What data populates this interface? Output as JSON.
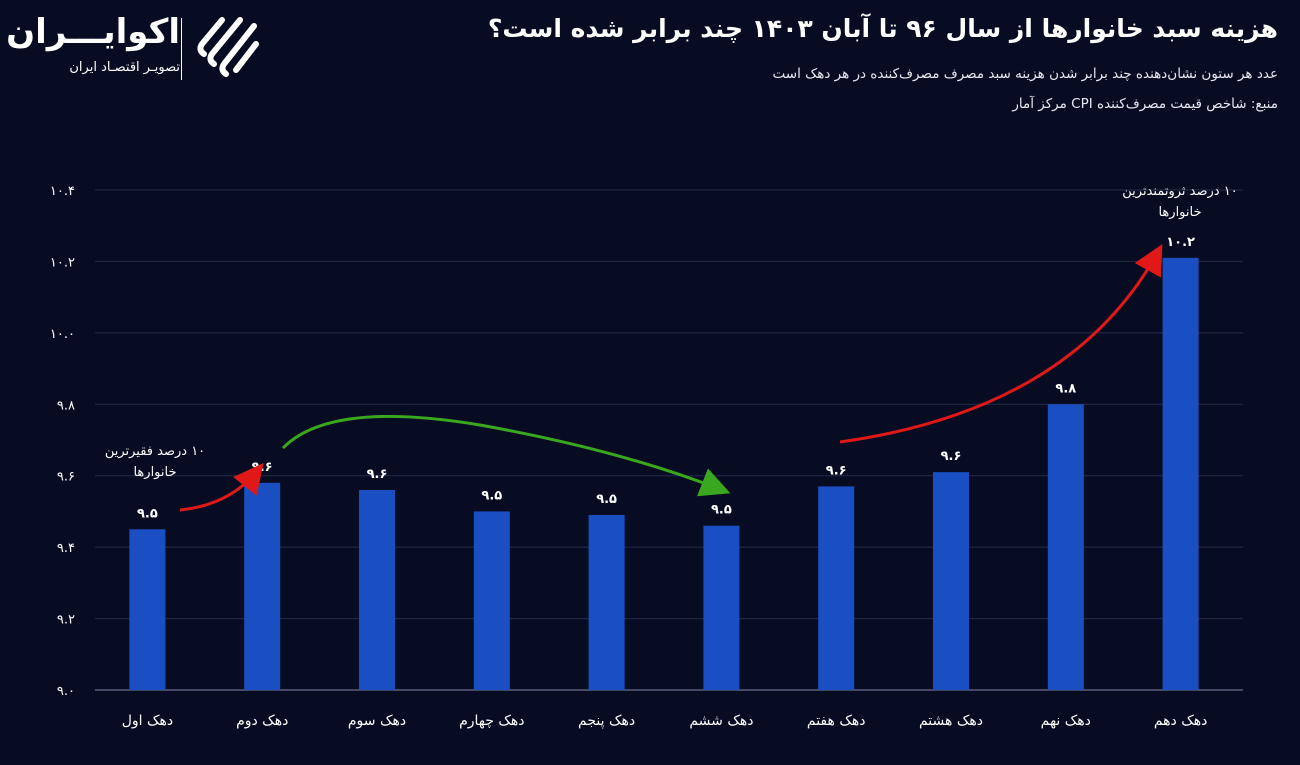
{
  "header": {
    "title": "هزینه سبد خانوارها از سال ۹۶ تا آبان ۱۴۰۳ چند برابر شده است؟",
    "subtitle": "عدد هر ستون نشان‌دهنده چند برابر شدن هزینه سبد مصرف مصرف‌کننده در هر دهک است",
    "source": "منبع: شاخص قیمت مصرف‌کننده CPI مرکز آمار"
  },
  "logo": {
    "name": "اکوایـــران",
    "tagline": "تصویـر اقتصـاد ایران"
  },
  "colors": {
    "background": "#070c22",
    "bar": "#1a4fc4",
    "grid": "#2a3050",
    "arrow_red": "#e01818",
    "arrow_green": "#3aa81e"
  },
  "chart_data": {
    "type": "bar",
    "categories": [
      "دهک اول",
      "دهک دوم",
      "دهک سوم",
      "دهک چهارم",
      "دهک پنجم",
      "دهک ششم",
      "دهک هفتم",
      "دهک هشتم",
      "دهک نهم",
      "دهک دهم"
    ],
    "values": [
      9.45,
      9.58,
      9.56,
      9.5,
      9.49,
      9.46,
      9.57,
      9.61,
      9.8,
      10.21
    ],
    "data_labels": [
      "۹.۵",
      "۹.۶",
      "۹.۶",
      "۹.۵",
      "۹.۵",
      "۹.۵",
      "۹.۶",
      "۹.۶",
      "۹.۸",
      "۱۰.۲"
    ],
    "ylim": [
      9.0,
      10.4
    ],
    "yticks": [
      9.0,
      9.2,
      9.4,
      9.6,
      9.8,
      10.0,
      10.2,
      10.4
    ],
    "ytick_labels": [
      "۹.۰",
      "۹.۲",
      "۹.۴",
      "۹.۶",
      "۹.۸",
      "۱۰.۰",
      "۱۰.۲",
      "۱۰.۴"
    ],
    "grid": true,
    "annotations": [
      {
        "text": [
          "۱۰ درصد فقیرترین",
          "خانوارها"
        ],
        "category": "دهک اول"
      },
      {
        "text": [
          "۱۰ درصد ثروتمندترین",
          "خانوارها"
        ],
        "category": "دهک دهم"
      }
    ]
  }
}
